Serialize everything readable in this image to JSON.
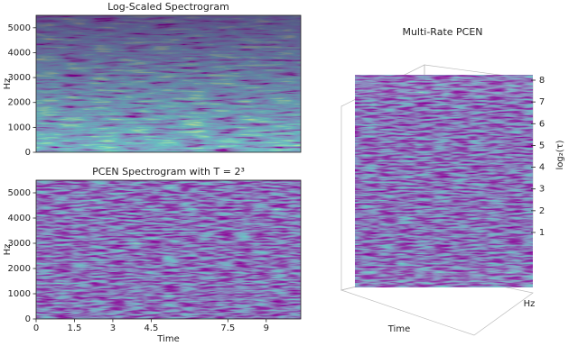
{
  "chart_data": [
    {
      "type": "heatmap",
      "title": "Log-Scaled Spectrogram",
      "ylabel": "Hz",
      "ylim": [
        0,
        5500
      ],
      "yticks": [
        0,
        1000,
        2000,
        3000,
        4000,
        5000
      ],
      "xlim": [
        0,
        10.35
      ]
    },
    {
      "type": "heatmap",
      "title": "PCEN Spectrogram with T = 2³",
      "ylabel": "Hz",
      "xlabel": "Time",
      "ylim": [
        0,
        5500
      ],
      "yticks": [
        0,
        1000,
        2000,
        3000,
        4000,
        5000
      ],
      "xlim": [
        0,
        10.35
      ],
      "xticks": [
        0,
        1.5,
        3,
        4.5,
        7.5,
        9
      ]
    },
    {
      "type": "stack3d",
      "title": "Multi-Rate PCEN",
      "xlabel": "Time",
      "ylabel": "Hz",
      "zlabel": "log₂(τ)",
      "zlim": [
        1,
        8
      ],
      "zticks": [
        1,
        2,
        3,
        4,
        5,
        6,
        7,
        8
      ]
    }
  ]
}
